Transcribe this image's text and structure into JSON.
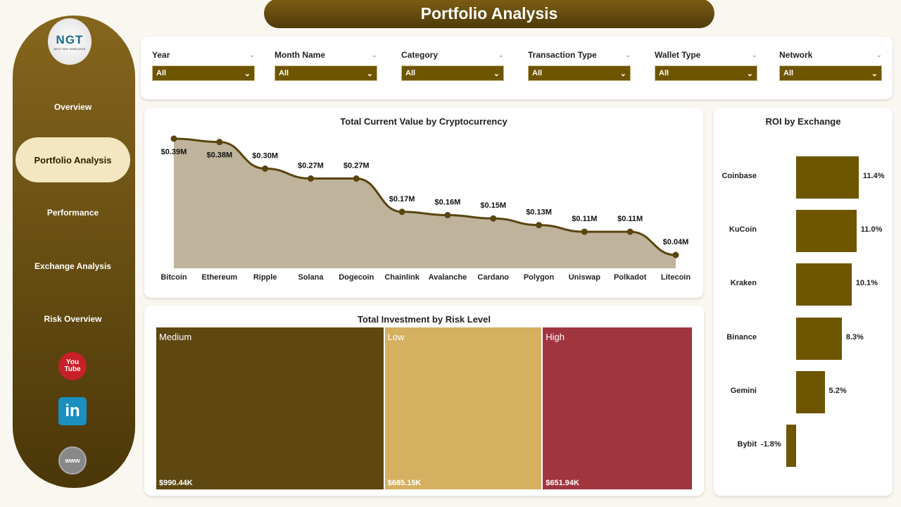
{
  "header": {
    "title": "Portfolio Analysis"
  },
  "sidebar": {
    "logo": {
      "text": "NGT",
      "sub": "NEXT GEN TEMPLATES"
    },
    "items": [
      {
        "label": "Overview"
      },
      {
        "label": "Portfolio Analysis",
        "active": true
      },
      {
        "label": "Performance"
      },
      {
        "label": "Exchange Analysis"
      },
      {
        "label": "Risk Overview"
      }
    ],
    "social": [
      {
        "icon": "youtube-icon",
        "text": "You Tube"
      },
      {
        "icon": "linkedin-icon",
        "text": "in"
      },
      {
        "icon": "globe-icon",
        "text": "www"
      }
    ]
  },
  "filters": [
    {
      "label": "Year",
      "value": "All"
    },
    {
      "label": "Month Name",
      "value": "All"
    },
    {
      "label": "Category",
      "value": "All"
    },
    {
      "label": "Transaction Type",
      "value": "All"
    },
    {
      "label": "Wallet Type",
      "value": "All"
    },
    {
      "label": "Network",
      "value": "All"
    }
  ],
  "colors": {
    "brand": "#6e5500",
    "area": "#bfb39b",
    "line": "#5a4510",
    "medium": "#5e4710",
    "low": "#d4b060",
    "high": "#a03540"
  },
  "chart_data": [
    {
      "type": "area",
      "title": "Total Current Value by Cryptocurrency",
      "categories": [
        "Bitcoin",
        "Ethereum",
        "Ripple",
        "Solana",
        "Dogecoin",
        "Chainlink",
        "Avalanche",
        "Cardano",
        "Polygon",
        "Uniswap",
        "Polkadot",
        "Litecoin"
      ],
      "values": [
        0.39,
        0.38,
        0.3,
        0.27,
        0.27,
        0.17,
        0.16,
        0.15,
        0.13,
        0.11,
        0.11,
        0.04
      ],
      "labels": [
        "$0.39M",
        "$0.38M",
        "$0.30M",
        "$0.27M",
        "$0.27M",
        "$0.17M",
        "$0.16M",
        "$0.15M",
        "$0.13M",
        "$0.11M",
        "$0.11M",
        "$0.04M"
      ]
    },
    {
      "type": "treemap",
      "title": "Total Investment by Risk Level",
      "categories": [
        "Medium",
        "Low",
        "High"
      ],
      "values": [
        990.44,
        685.15,
        651.94
      ],
      "labels": [
        "$990.44K",
        "$685.15K",
        "$651.94K"
      ]
    },
    {
      "type": "bar",
      "orientation": "horizontal",
      "title": "ROI by Exchange",
      "categories": [
        "Coinbase",
        "KuCoin",
        "Kraken",
        "Binance",
        "Gemini",
        "Bybit"
      ],
      "values": [
        11.4,
        11.0,
        10.1,
        8.3,
        5.2,
        -1.8
      ],
      "labels": [
        "11.4%",
        "11.0%",
        "10.1%",
        "8.3%",
        "5.2%",
        "-1.8%"
      ]
    }
  ]
}
